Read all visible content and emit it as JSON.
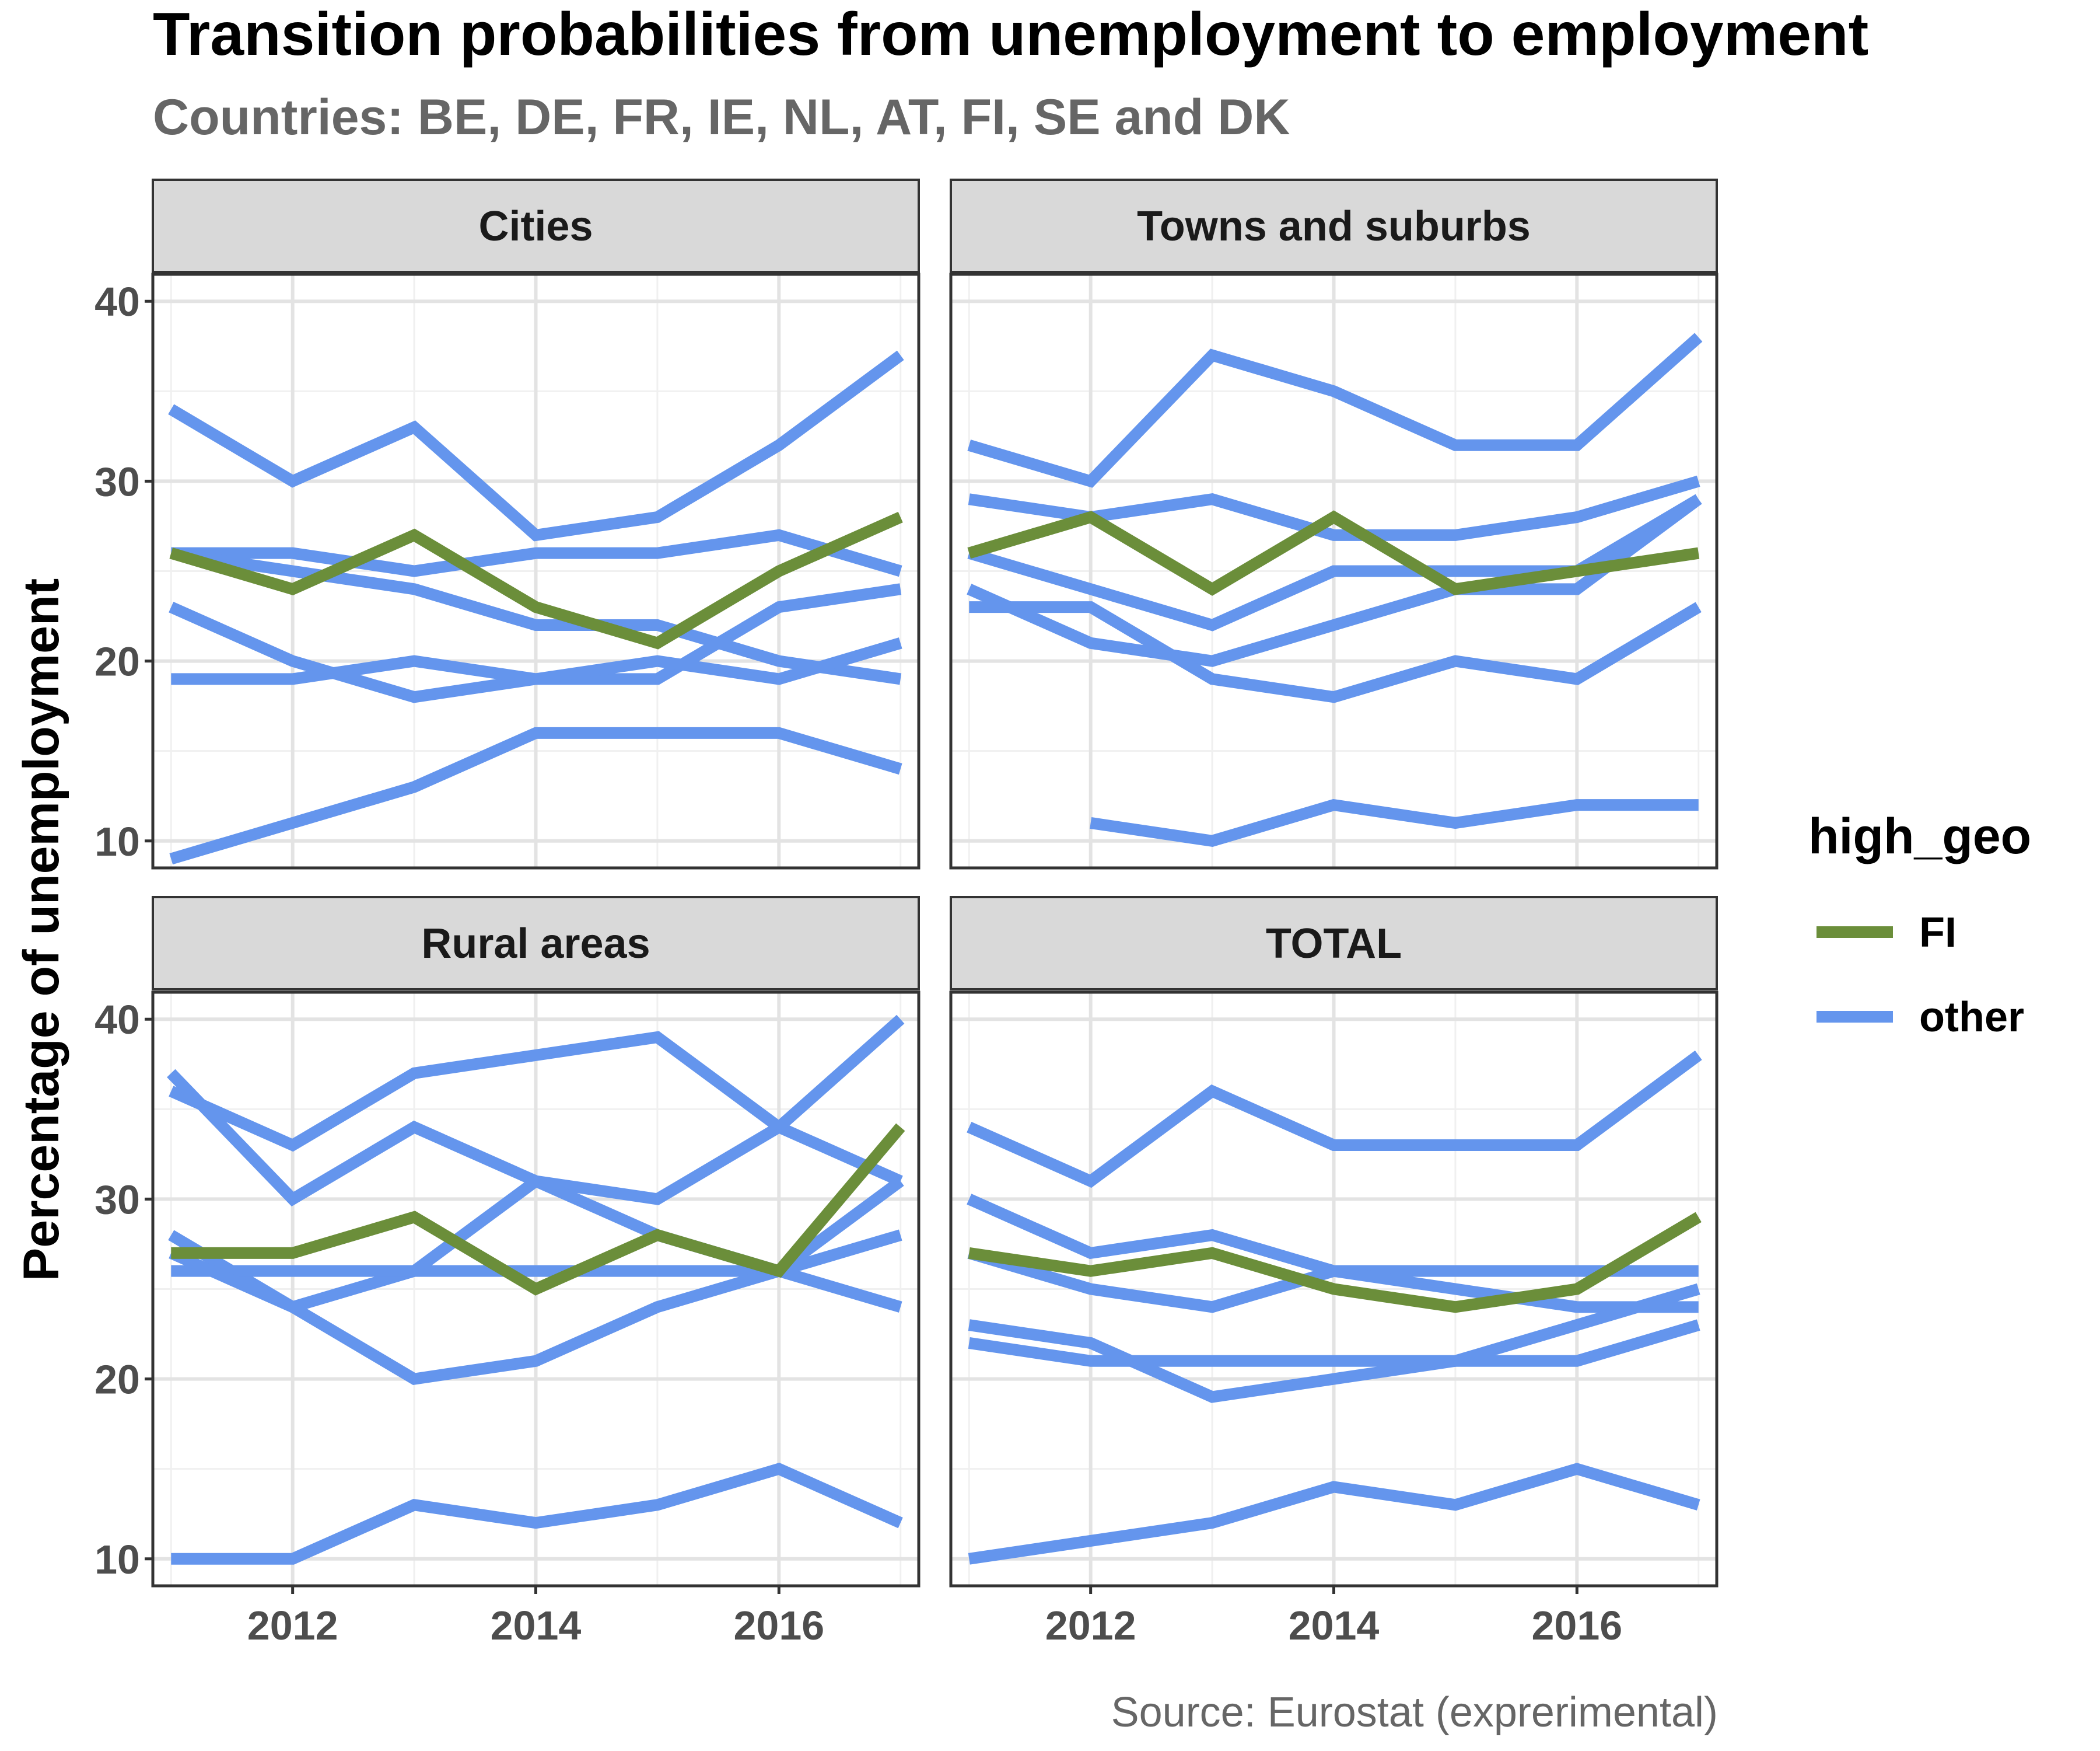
{
  "chart_data": {
    "type": "line",
    "title": "Transition probabilities from unemployment to employment",
    "subtitle": "Countries: BE, DE, FR, IE, NL, AT, FI, SE and DK",
    "ylabel": "Percentage of unemployment",
    "xlabel": "",
    "caption": "Source: Eurostat (exprerimental)",
    "x": [
      2011,
      2012,
      2013,
      2014,
      2015,
      2016,
      2017
    ],
    "xlim": [
      2010.85,
      2017.15
    ],
    "ylim": [
      8.5,
      41.5
    ],
    "x_ticks": [
      2012,
      2014,
      2016
    ],
    "y_ticks": [
      10,
      20,
      30,
      40
    ],
    "grid": true,
    "legend": {
      "title": "high_geo",
      "position": "right",
      "entries": [
        {
          "name": "FI",
          "color": "#6b8e3a"
        },
        {
          "name": "other",
          "color": "#6495ed"
        }
      ]
    },
    "panels": [
      {
        "title": "Cities",
        "series": [
          {
            "group": "other",
            "values": [
              34,
              30,
              33,
              27,
              28,
              32,
              37
            ]
          },
          {
            "group": "other",
            "values": [
              26,
              26,
              25,
              26,
              26,
              27,
              25
            ]
          },
          {
            "group": "other",
            "values": [
              26,
              25,
              24,
              22,
              22,
              20,
              19
            ]
          },
          {
            "group": "other",
            "values": [
              23,
              20,
              18,
              19,
              19,
              23,
              24
            ]
          },
          {
            "group": "other",
            "values": [
              19,
              19,
              20,
              19,
              20,
              19,
              21
            ]
          },
          {
            "group": "other",
            "values": [
              9,
              11,
              13,
              16,
              16,
              16,
              14
            ]
          },
          {
            "group": "FI",
            "values": [
              26,
              24,
              27,
              23,
              21,
              25,
              28
            ]
          }
        ]
      },
      {
        "title": "Towns and suburbs",
        "series": [
          {
            "group": "other",
            "values": [
              32,
              30,
              37,
              35,
              32,
              32,
              38
            ]
          },
          {
            "group": "other",
            "values": [
              29,
              28,
              29,
              27,
              27,
              28,
              30
            ]
          },
          {
            "group": "other",
            "values": [
              26,
              24,
              22,
              25,
              25,
              25,
              29
            ]
          },
          {
            "group": "other",
            "values": [
              24,
              21,
              20,
              22,
              24,
              24,
              29
            ]
          },
          {
            "group": "other",
            "values": [
              23,
              23,
              19,
              18,
              20,
              19,
              23
            ]
          },
          {
            "group": "other",
            "values": [
              null,
              11,
              10,
              12,
              11,
              12,
              12
            ]
          },
          {
            "group": "FI",
            "values": [
              26,
              28,
              24,
              28,
              24,
              25,
              26
            ]
          }
        ]
      },
      {
        "title": "Rural areas",
        "series": [
          {
            "group": "other",
            "values": [
              36,
              33,
              37,
              38,
              39,
              34,
              31
            ]
          },
          {
            "group": "other",
            "values": [
              37,
              30,
              34,
              31,
              30,
              34,
              40
            ]
          },
          {
            "group": "other",
            "values": [
              28,
              24,
              26,
              31,
              28,
              26,
              24
            ]
          },
          {
            "group": "other",
            "values": [
              26,
              26,
              26,
              26,
              26,
              26,
              28
            ]
          },
          {
            "group": "other",
            "values": [
              27,
              24,
              20,
              21,
              24,
              26,
              31
            ]
          },
          {
            "group": "other",
            "values": [
              10,
              10,
              13,
              12,
              13,
              15,
              12
            ]
          },
          {
            "group": "FI",
            "values": [
              27,
              27,
              29,
              25,
              28,
              26,
              34
            ]
          }
        ]
      },
      {
        "title": "TOTAL",
        "series": [
          {
            "group": "other",
            "values": [
              34,
              31,
              36,
              33,
              33,
              33,
              38
            ]
          },
          {
            "group": "other",
            "values": [
              30,
              27,
              28,
              26,
              26,
              26,
              26
            ]
          },
          {
            "group": "other",
            "values": [
              27,
              25,
              24,
              26,
              25,
              24,
              24
            ]
          },
          {
            "group": "other",
            "values": [
              23,
              22,
              19,
              20,
              21,
              23,
              25
            ]
          },
          {
            "group": "other",
            "values": [
              22,
              21,
              21,
              21,
              21,
              21,
              23
            ]
          },
          {
            "group": "other",
            "values": [
              10,
              11,
              12,
              14,
              13,
              15,
              13
            ]
          },
          {
            "group": "FI",
            "values": [
              27,
              26,
              27,
              25,
              24,
              25,
              29
            ]
          }
        ]
      }
    ]
  }
}
